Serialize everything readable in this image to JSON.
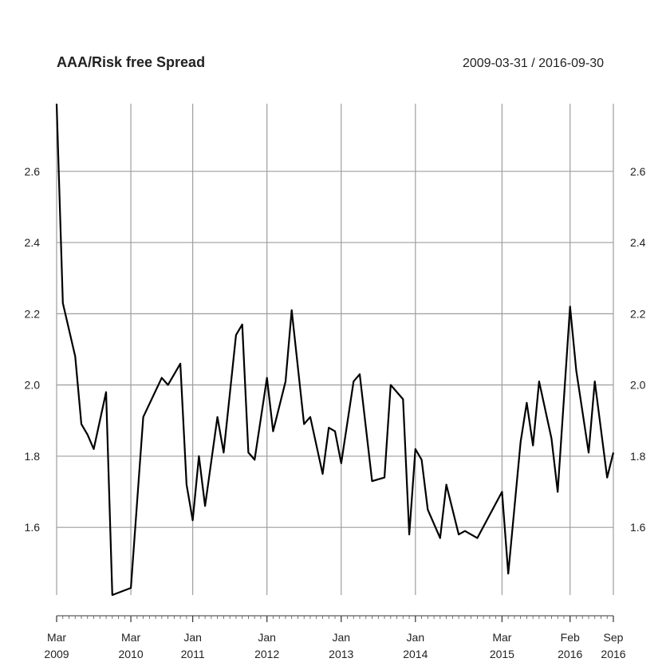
{
  "chart_data": {
    "type": "line",
    "title": "AAA/Risk free Spread",
    "range_label": "2009-03-31 / 2016-09-30",
    "xlabel": "",
    "ylabel": "",
    "ylim": [
      1.41,
      2.79
    ],
    "grid": true,
    "y_ticks": [
      "1.6",
      "1.8",
      "2.0",
      "2.2",
      "2.4",
      "2.6"
    ],
    "x_ticks": [
      {
        "date": "2009-03",
        "month": "Mar",
        "year": "2009"
      },
      {
        "date": "2010-03",
        "month": "Mar",
        "year": "2010"
      },
      {
        "date": "2011-01",
        "month": "Jan",
        "year": "2011"
      },
      {
        "date": "2012-01",
        "month": "Jan",
        "year": "2012"
      },
      {
        "date": "2013-01",
        "month": "Jan",
        "year": "2013"
      },
      {
        "date": "2014-01",
        "month": "Jan",
        "year": "2014"
      },
      {
        "date": "2015-03",
        "month": "Mar",
        "year": "2015"
      },
      {
        "date": "2016-02",
        "month": "Feb",
        "year": "2016"
      },
      {
        "date": "2016-09",
        "month": "Sep",
        "year": "2016"
      }
    ],
    "series": [
      {
        "x": [
          "2009-03",
          "2009-04",
          "2009-06",
          "2009-07",
          "2009-08",
          "2009-09",
          "2009-11",
          "2009-12",
          "2010-03",
          "2010-05",
          "2010-08",
          "2010-09",
          "2010-11",
          "2010-12",
          "2011-01",
          "2011-02",
          "2011-03",
          "2011-05",
          "2011-06",
          "2011-08",
          "2011-09",
          "2011-10",
          "2011-11",
          "2012-01",
          "2012-02",
          "2012-04",
          "2012-05",
          "2012-07",
          "2012-08",
          "2012-10",
          "2012-11",
          "2012-12",
          "2013-01",
          "2013-03",
          "2013-04",
          "2013-06",
          "2013-08",
          "2013-09",
          "2013-11",
          "2013-12",
          "2014-01",
          "2014-02",
          "2014-03",
          "2014-05",
          "2014-06",
          "2014-08",
          "2014-09",
          "2014-11",
          "2015-03",
          "2015-04",
          "2015-06",
          "2015-07",
          "2015-08",
          "2015-09",
          "2015-11",
          "2015-12",
          "2016-02",
          "2016-03",
          "2016-05",
          "2016-06",
          "2016-08",
          "2016-09"
        ],
        "values": [
          2.79,
          2.23,
          2.08,
          1.89,
          1.86,
          1.82,
          1.98,
          1.41,
          1.43,
          1.91,
          2.02,
          2.0,
          2.06,
          1.72,
          1.62,
          1.8,
          1.66,
          1.91,
          1.81,
          2.14,
          2.17,
          1.81,
          1.79,
          2.02,
          1.87,
          2.01,
          2.21,
          1.89,
          1.91,
          1.75,
          1.88,
          1.87,
          1.78,
          2.01,
          2.03,
          1.73,
          1.74,
          2.0,
          1.96,
          1.58,
          1.82,
          1.79,
          1.65,
          1.57,
          1.72,
          1.58,
          1.59,
          1.57,
          1.7,
          1.47,
          1.84,
          1.95,
          1.83,
          2.01,
          1.85,
          1.7,
          2.22,
          2.04,
          1.81,
          2.01,
          1.74,
          1.81
        ]
      }
    ]
  }
}
